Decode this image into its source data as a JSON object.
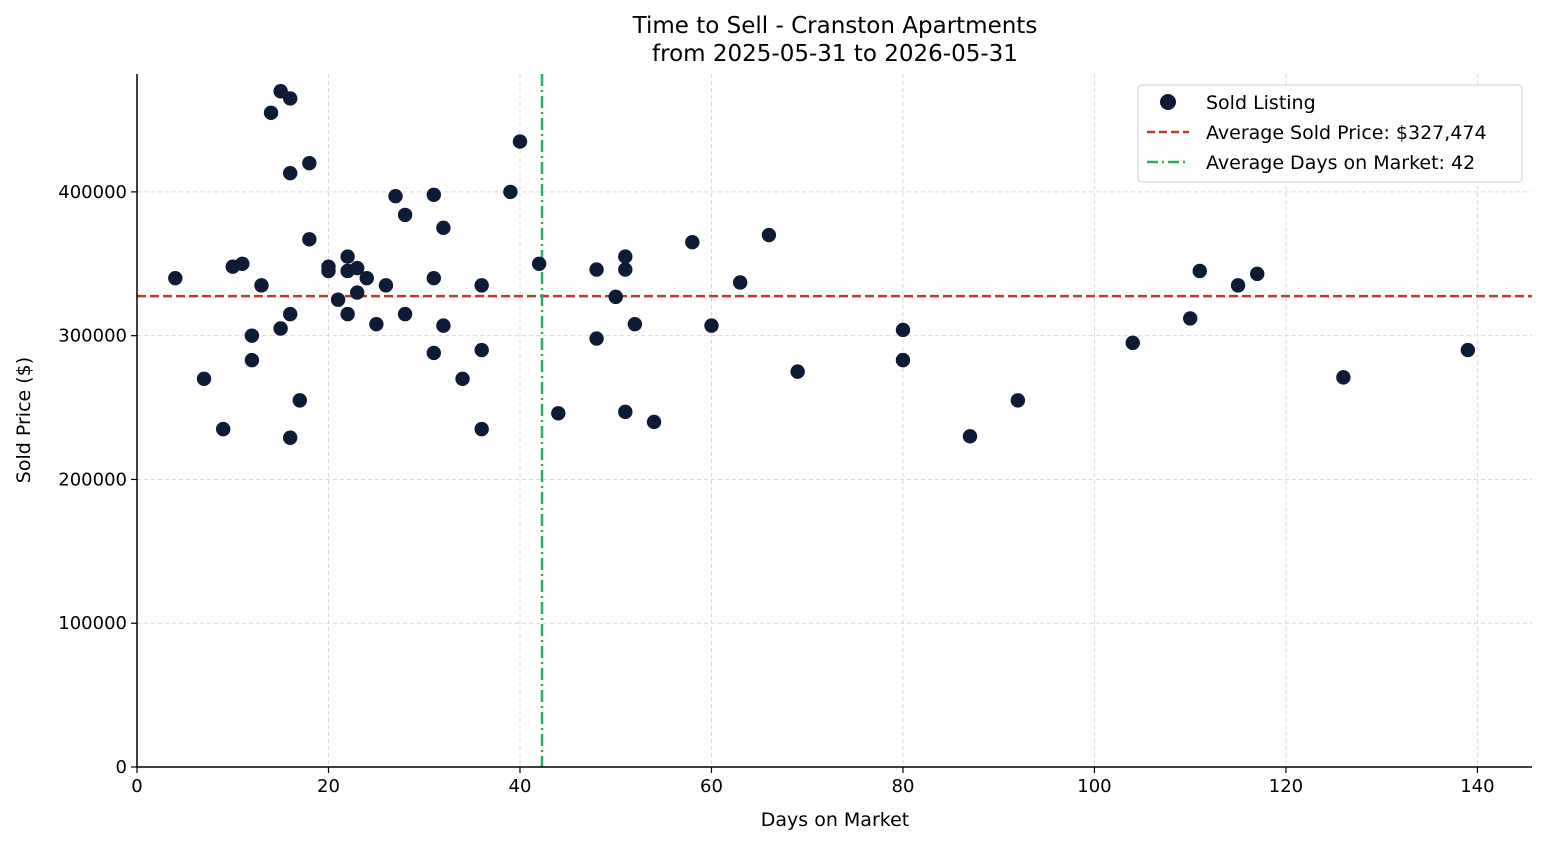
{
  "chart_data": {
    "type": "scatter",
    "title": "Time to Sell - Cranston Apartments",
    "subtitle": "from 2025-05-31 to 2026-05-31",
    "xlabel": "Days on Market",
    "ylabel": "Sold Price ($)",
    "xlim": [
      0,
      145.7
    ],
    "ylim": [
      0,
      482000
    ],
    "xticks": [
      0,
      20,
      40,
      60,
      80,
      100,
      120,
      140
    ],
    "yticks": [
      0,
      100000,
      200000,
      300000,
      400000
    ],
    "grid": true,
    "legend_position": "top-right",
    "colors": {
      "points": "#0d1b36",
      "avg_price": "#c0392b",
      "avg_days": "#27ae60"
    },
    "series": [
      {
        "name": "Sold Listing",
        "points": [
          [
            4,
            340000
          ],
          [
            7,
            270000
          ],
          [
            9,
            235000
          ],
          [
            10,
            348000
          ],
          [
            11,
            350000
          ],
          [
            12,
            300000
          ],
          [
            12,
            283000
          ],
          [
            13,
            335000
          ],
          [
            14,
            455000
          ],
          [
            15,
            470000
          ],
          [
            15,
            305000
          ],
          [
            16,
            465000
          ],
          [
            16,
            413000
          ],
          [
            16,
            315000
          ],
          [
            16,
            229000
          ],
          [
            17,
            255000
          ],
          [
            18,
            420000
          ],
          [
            18,
            367000
          ],
          [
            20,
            348000
          ],
          [
            20,
            345000
          ],
          [
            21,
            325000
          ],
          [
            22,
            355000
          ],
          [
            22,
            345000
          ],
          [
            22,
            315000
          ],
          [
            23,
            347000
          ],
          [
            23,
            330000
          ],
          [
            24,
            340000
          ],
          [
            25,
            308000
          ],
          [
            26,
            335000
          ],
          [
            27,
            397000
          ],
          [
            28,
            384000
          ],
          [
            28,
            315000
          ],
          [
            31,
            398000
          ],
          [
            31,
            340000
          ],
          [
            31,
            288000
          ],
          [
            32,
            375000
          ],
          [
            32,
            307000
          ],
          [
            34,
            270000
          ],
          [
            36,
            335000
          ],
          [
            36,
            290000
          ],
          [
            36,
            235000
          ],
          [
            39,
            400000
          ],
          [
            40,
            435000
          ],
          [
            42,
            350000
          ],
          [
            44,
            246000
          ],
          [
            48,
            346000
          ],
          [
            48,
            298000
          ],
          [
            50,
            327000
          ],
          [
            51,
            355000
          ],
          [
            51,
            346000
          ],
          [
            51,
            247000
          ],
          [
            52,
            308000
          ],
          [
            54,
            240000
          ],
          [
            58,
            365000
          ],
          [
            60,
            307000
          ],
          [
            63,
            337000
          ],
          [
            66,
            370000
          ],
          [
            69,
            275000
          ],
          [
            80,
            304000
          ],
          [
            80,
            283000
          ],
          [
            87,
            230000
          ],
          [
            92,
            255000
          ],
          [
            104,
            295000
          ],
          [
            110,
            312000
          ],
          [
            111,
            345000
          ],
          [
            115,
            335000
          ],
          [
            117,
            343000
          ],
          [
            126,
            271000
          ],
          [
            139,
            290000
          ]
        ]
      }
    ],
    "reference_lines": [
      {
        "name": "Average Sold Price: $327,474",
        "orientation": "horizontal",
        "value": 327474,
        "style": "dashed"
      },
      {
        "name": "Average Days on Market: 42",
        "orientation": "vertical",
        "value": 42.3,
        "style": "dashdot"
      }
    ]
  }
}
